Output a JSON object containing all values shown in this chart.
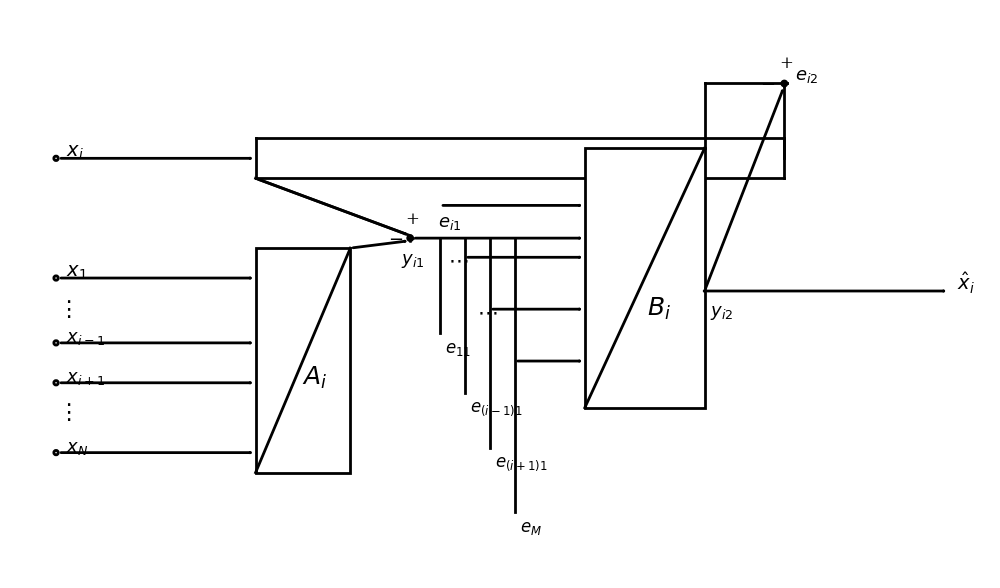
{
  "bg_color": "#ffffff",
  "line_color": "#000000",
  "lw": 2.0,
  "fig_width": 10.0,
  "fig_height": 5.88,
  "dpi": 100,
  "font_size": 13,
  "sum_r": 0.025,
  "mic_r": 0.022,
  "dot_r": 0.01,
  "ahw": 0.014,
  "ahl": 0.02
}
